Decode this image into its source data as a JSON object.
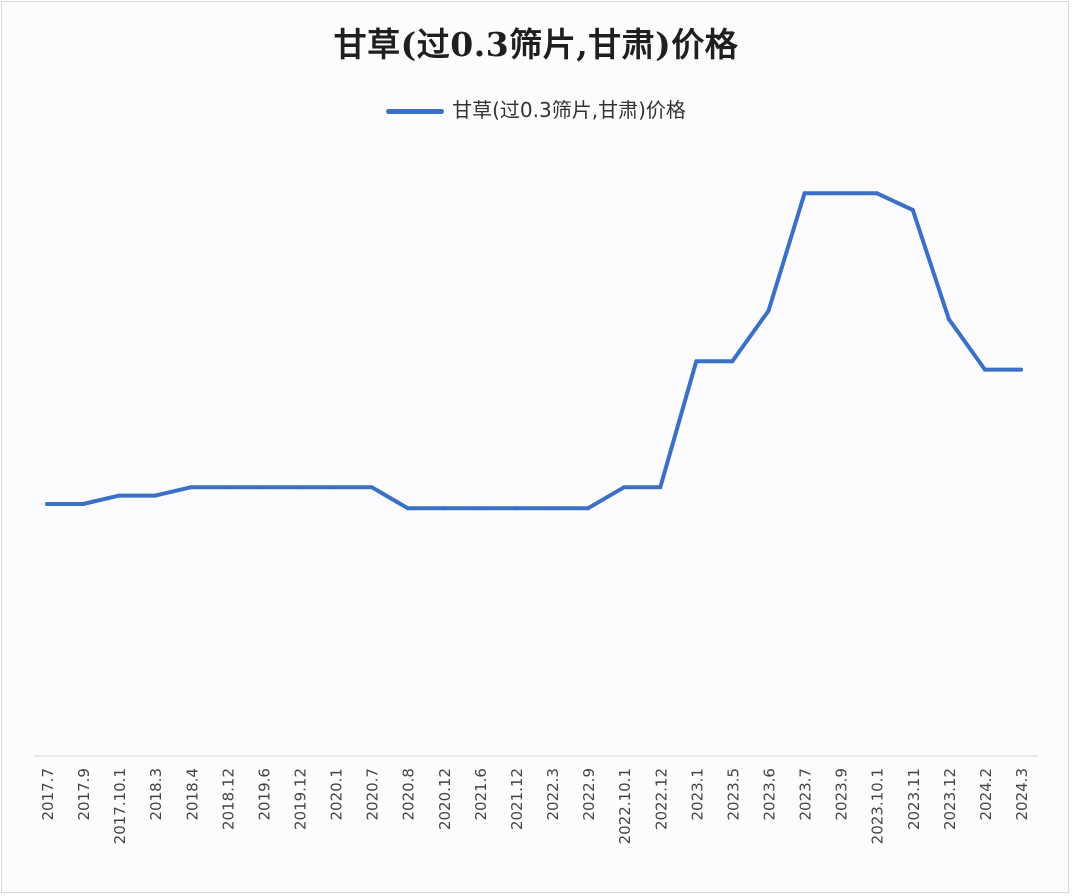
{
  "chart_data": {
    "type": "line",
    "title": "甘草(过0.3筛片,甘肃)价格",
    "xlabel": "",
    "ylabel": "",
    "grid": false,
    "legend_position": "top-center",
    "categories": [
      "2017.7",
      "2017.9",
      "2017.10.1",
      "2018.3",
      "2018.4",
      "2018.12",
      "2019.6",
      "2019.12",
      "2020.1",
      "2020.7",
      "2020.8",
      "2020.12",
      "2021.6",
      "2021.12",
      "2022.3",
      "2022.9",
      "2022.10.1",
      "2022.12",
      "2023.1",
      "2023.5",
      "2023.6",
      "2023.7",
      "2023.9",
      "2023.10.1",
      "2023.11",
      "2023.12",
      "2024.2",
      "2024.3"
    ],
    "series": [
      {
        "name": "甘草(过0.3筛片,甘肃)价格",
        "color": "#3a70c6",
        "values": [
          30,
          30,
          31,
          31,
          32,
          32,
          32,
          32,
          32,
          32,
          29.5,
          29.5,
          29.5,
          29.5,
          29.5,
          29.5,
          32,
          32,
          47,
          47,
          53,
          67,
          67,
          67,
          65,
          52,
          46,
          46
        ]
      }
    ]
  }
}
